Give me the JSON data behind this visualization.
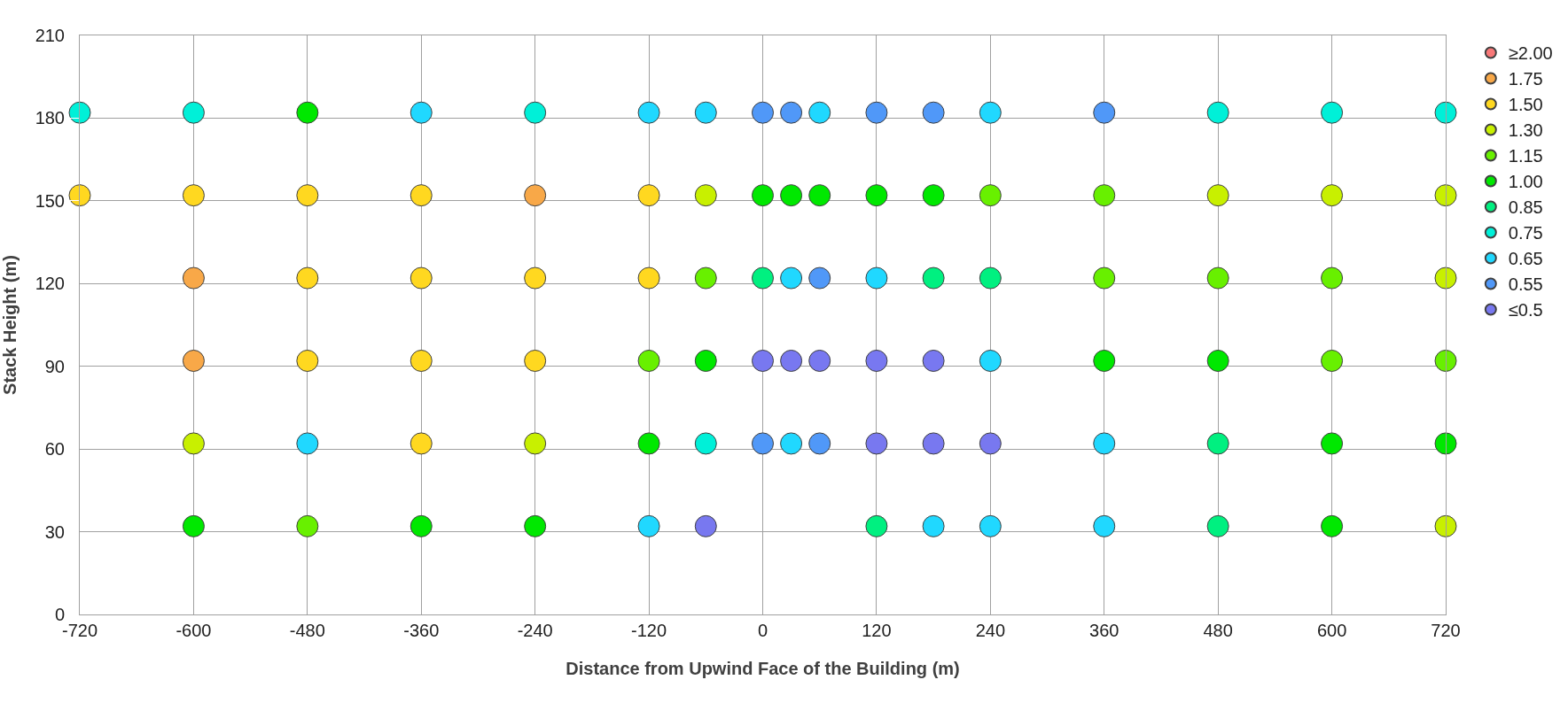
{
  "chart_data": {
    "type": "scatter",
    "xlabel": "Distance from Upwind Face of the Building (m)",
    "ylabel": "Stack Height (m)",
    "xlim": [
      -720,
      720
    ],
    "xticks": [
      -720,
      -600,
      -480,
      -360,
      -240,
      -120,
      0,
      120,
      240,
      360,
      480,
      600,
      720
    ],
    "ylim": [
      0,
      210
    ],
    "yticks": [
      0,
      30,
      60,
      90,
      120,
      150,
      180,
      210
    ],
    "grid": true,
    "legend": "right",
    "marker": "circle",
    "series": [
      {
        "name": "≥2.00",
        "color": "#f87878"
      },
      {
        "name": "1.75",
        "color": "#f8a848",
        "x": [
          -240,
          -600,
          -600
        ],
        "values": [
          152,
          122,
          92
        ]
      },
      {
        "name": "1.50",
        "color": "#ffd820",
        "x": [
          -720,
          -600,
          -480,
          -360,
          -120,
          -480,
          -360,
          -240,
          -120,
          -480,
          -360,
          -240,
          -360
        ],
        "values": [
          152,
          152,
          152,
          152,
          152,
          122,
          122,
          122,
          122,
          92,
          92,
          92,
          62
        ]
      },
      {
        "name": "1.30",
        "color": "#c8f000",
        "x": [
          -60,
          480,
          600,
          720,
          720,
          -600,
          -240,
          720
        ],
        "values": [
          152,
          152,
          152,
          152,
          122,
          62,
          62,
          32
        ]
      },
      {
        "name": "1.15",
        "color": "#68f000",
        "x": [
          240,
          360,
          -60,
          360,
          480,
          600,
          -120,
          600,
          720,
          -480
        ],
        "values": [
          152,
          152,
          122,
          122,
          122,
          122,
          92,
          92,
          92,
          32
        ]
      },
      {
        "name": "1.00",
        "color": "#00e800",
        "x": [
          -480,
          0,
          30,
          60,
          120,
          180,
          -60,
          360,
          480,
          -120,
          600,
          720,
          -600,
          -360,
          -240,
          600
        ],
        "values": [
          182,
          152,
          152,
          152,
          152,
          152,
          92,
          92,
          92,
          62,
          62,
          62,
          32,
          32,
          32,
          32
        ]
      },
      {
        "name": "0.85",
        "color": "#00f080",
        "x": [
          0,
          180,
          240,
          480,
          120,
          480
        ],
        "values": [
          122,
          122,
          122,
          62,
          32,
          32
        ]
      },
      {
        "name": "0.75",
        "color": "#00f0d8",
        "x": [
          -720,
          -600,
          -240,
          480,
          600,
          720,
          -60
        ],
        "values": [
          182,
          182,
          182,
          182,
          182,
          182,
          62
        ]
      },
      {
        "name": "0.65",
        "color": "#20d8ff",
        "x": [
          -360,
          -120,
          -60,
          60,
          240,
          30,
          120,
          240,
          -480,
          30,
          360,
          -120,
          180,
          240,
          360
        ],
        "values": [
          182,
          182,
          182,
          182,
          182,
          122,
          122,
          92,
          62,
          62,
          62,
          32,
          32,
          32,
          32
        ]
      },
      {
        "name": "0.55",
        "color": "#5098f8",
        "x": [
          0,
          30,
          120,
          180,
          360,
          60,
          0,
          60
        ],
        "values": [
          182,
          182,
          182,
          182,
          182,
          122,
          62,
          62
        ]
      },
      {
        "name": "≤0.5",
        "color": "#7878f0",
        "x": [
          0,
          30,
          60,
          120,
          180,
          120,
          180,
          240,
          -60
        ],
        "values": [
          92,
          92,
          92,
          92,
          92,
          62,
          62,
          62,
          32
        ]
      }
    ]
  }
}
